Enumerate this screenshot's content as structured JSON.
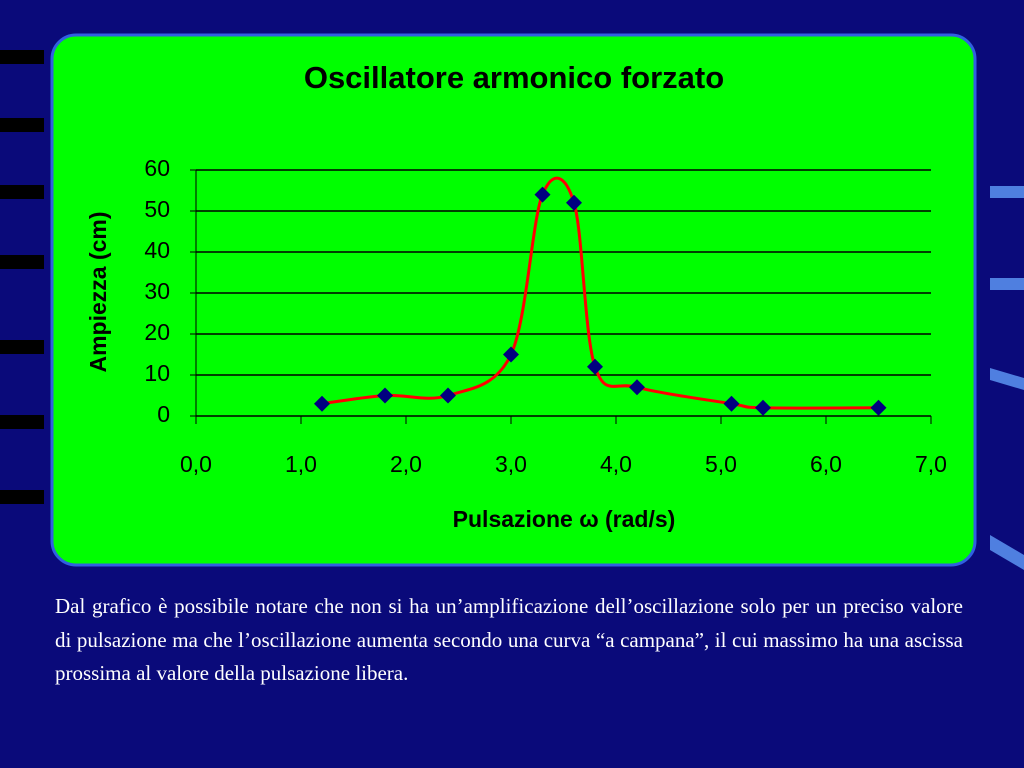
{
  "chart_data": {
    "type": "line",
    "title": "Oscillatore armonico forzato",
    "x_label": "Pulsazione ω (rad/s)",
    "y_label": "Ampiezza (cm)",
    "x": [
      1.2,
      1.8,
      2.4,
      3.0,
      3.3,
      3.6,
      3.8,
      4.2,
      5.1,
      5.4,
      6.5
    ],
    "series": [
      {
        "color": "#000080",
        "line_color": "#ff0000",
        "values": [
          3,
          5,
          5,
          15,
          54,
          52,
          12,
          7,
          3,
          2,
          2
        ]
      }
    ],
    "xlim": [
      0,
      7
    ],
    "ylim": [
      0,
      60
    ],
    "xticks": [
      {
        "value": 0,
        "label": "0,0"
      },
      {
        "value": 1,
        "label": "1,0"
      },
      {
        "value": 2,
        "label": "2,0"
      },
      {
        "value": 3,
        "label": "3,0"
      },
      {
        "value": 4,
        "label": "4,0"
      },
      {
        "value": 5,
        "label": "5,0"
      },
      {
        "value": 6,
        "label": "6,0"
      },
      {
        "value": 7,
        "label": "7,0"
      }
    ],
    "yticks": [
      0,
      10,
      20,
      30,
      40,
      50,
      60
    ],
    "grid": true,
    "smooth": true
  },
  "caption": "Dal grafico è possibile notare che non si ha un’amplificazione dell’oscillazione solo per un preciso valore di pulsazione ma che l’oscillazione aumenta secondo una curva “a campana”, il cui massimo ha una ascissa prossima al valore della pulsazione libera."
}
